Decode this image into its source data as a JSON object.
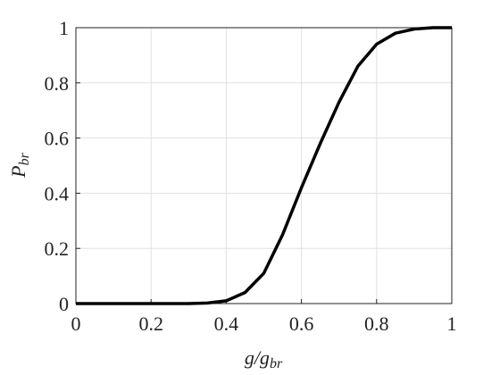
{
  "chart_data": {
    "type": "line",
    "xlabel": "g/g",
    "xlabel_sub": "br",
    "ylabel": "P",
    "ylabel_sub": "br",
    "x": [
      0,
      0.05,
      0.1,
      0.15,
      0.2,
      0.25,
      0.3,
      0.35,
      0.4,
      0.45,
      0.5,
      0.55,
      0.6,
      0.65,
      0.7,
      0.75,
      0.8,
      0.85,
      0.9,
      0.95,
      1
    ],
    "series": [
      {
        "color": "#000000",
        "values": [
          0,
          0,
          0,
          0,
          0,
          0,
          0,
          0.002,
          0.01,
          0.04,
          0.11,
          0.25,
          0.42,
          0.58,
          0.73,
          0.86,
          0.94,
          0.98,
          0.995,
          1,
          1
        ]
      }
    ],
    "xlim": [
      0,
      1
    ],
    "ylim": [
      0,
      1
    ],
    "xticks": [
      0,
      0.2,
      0.4,
      0.6,
      0.8,
      1
    ],
    "yticks": [
      0,
      0.2,
      0.4,
      0.6,
      0.8,
      1
    ],
    "grid": true
  }
}
